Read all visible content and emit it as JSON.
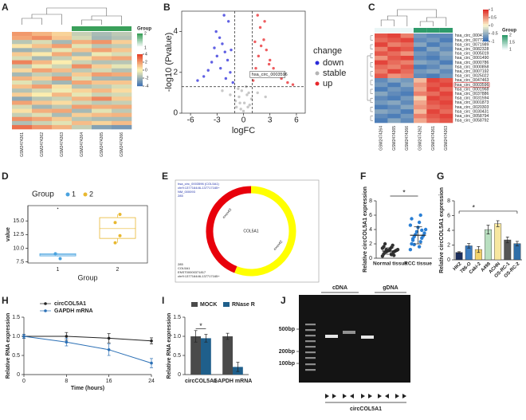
{
  "chart_data": [
    {
      "type": "heatmap",
      "panel": "A",
      "columns": [
        "GSM2474261",
        "GSM2474262",
        "GSM2474263",
        "GSM2474264",
        "GSM2474265",
        "GSM2474266"
      ],
      "groups": [
        1,
        1,
        1,
        2,
        2,
        2
      ],
      "group_colors": [
        "#ffffff",
        "#3aa05a"
      ],
      "legend_title": "Group",
      "group_ticks": [
        2,
        1
      ],
      "colors": [
        "#4575b4",
        "#fdf6b5",
        "#e6452a"
      ],
      "clim": [
        -4,
        4
      ],
      "colorbar_ticks": [
        4,
        2,
        0,
        -2,
        -4
      ],
      "matrix": [
        [
          2.1,
          1.5,
          0.8,
          -1.2,
          -1.8,
          -1.4
        ],
        [
          1.8,
          2.4,
          1.1,
          -0.9,
          -2.0,
          -1.6
        ],
        [
          -1.5,
          -0.8,
          -1.9,
          1.6,
          2.2,
          0.9
        ],
        [
          0.4,
          1.2,
          2.0,
          -0.6,
          -1.5,
          -1.3
        ],
        [
          -2.1,
          -1.6,
          -0.5,
          1.2,
          1.9,
          1.1
        ],
        [
          1.0,
          0.3,
          1.7,
          -1.8,
          -0.4,
          -0.8
        ],
        [
          -0.8,
          -1.9,
          -1.2,
          0.6,
          1.5,
          1.8
        ],
        [
          2.6,
          1.4,
          0.2,
          -1.1,
          -1.6,
          -1.5
        ],
        [
          -1.3,
          -0.4,
          -1.0,
          2.3,
          0.9,
          -0.5
        ],
        [
          0.7,
          1.9,
          1.3,
          -1.4,
          -0.9,
          -1.6
        ],
        [
          -1.9,
          -1.2,
          -1.6,
          1.0,
          2.0,
          1.7
        ],
        [
          1.5,
          0.9,
          2.2,
          -0.7,
          -1.9,
          -2.0
        ],
        [
          -0.6,
          -1.4,
          -2.0,
          1.8,
          1.1,
          1.1
        ],
        [
          1.2,
          2.0,
          0.5,
          -1.6,
          -1.3,
          -0.8
        ],
        [
          -1.6,
          -0.9,
          -0.3,
          0.8,
          1.4,
          0.6
        ],
        [
          0.9,
          0.2,
          1.4,
          -0.5,
          -1.1,
          -0.9
        ],
        [
          -2.4,
          -1.5,
          -1.1,
          1.5,
          2.5,
          1.0
        ],
        [
          1.9,
          1.1,
          0.6,
          -1.0,
          -1.4,
          -1.2
        ],
        [
          -0.9,
          -2.0,
          -1.4,
          2.0,
          1.6,
          1.7
        ],
        [
          0.5,
          1.6,
          1.8,
          -1.9,
          -0.6,
          -1.4
        ],
        [
          -1.2,
          -0.7,
          -1.8,
          0.9,
          1.3,
          1.5
        ],
        [
          2.3,
          1.8,
          1.0,
          -1.5,
          -1.8,
          -1.8
        ],
        [
          -1.7,
          -1.1,
          -0.6,
          1.3,
          0.8,
          1.3
        ],
        [
          3.0,
          2.2,
          1.5,
          -1.2,
          -2.6,
          -2.9
        ]
      ]
    },
    {
      "type": "volcano",
      "panel": "B",
      "xlabel": "logFC",
      "ylabel": "-log10 (Pvalue)",
      "xlim": [
        -7,
        7
      ],
      "xticks": [
        -6,
        -3,
        0,
        3,
        6
      ],
      "ylim": [
        0,
        5
      ],
      "yticks": [
        0,
        2,
        4
      ],
      "thresholds": {
        "x": [
          -1,
          1
        ],
        "y": 1.3
      },
      "legend_title": "change",
      "annotation": {
        "text": "hsa_circ_0003596",
        "x": 1.2,
        "y": 1.9
      },
      "series": [
        {
          "name": "down",
          "color": "#2b2bd9",
          "x": [
            -1.2,
            -1.5,
            -1.8,
            -2.1,
            -2.4,
            -2.7,
            -3.0,
            -3.3,
            -3.6,
            -4.0,
            -4.5,
            -1.4,
            -2.0,
            -2.6,
            -3.1,
            -1.7,
            -5.2,
            -2.2
          ],
          "values": [
            1.5,
            2.0,
            2.6,
            3.0,
            3.4,
            3.7,
            2.8,
            3.2,
            2.5,
            2.1,
            1.8,
            3.1,
            1.7,
            2.2,
            4.0,
            4.5,
            1.6,
            4.8
          ]
        },
        {
          "name": "stable",
          "color": "#b5b5b5",
          "x": [
            -0.8,
            -0.5,
            -0.2,
            0.1,
            0.4,
            0.7,
            -0.6,
            0.3,
            -0.3,
            0.6,
            -0.9,
            0.9,
            0.0,
            -0.4,
            0.5,
            -1.5,
            1.6,
            -2.4,
            2.5
          ],
          "values": [
            0.3,
            0.8,
            1.1,
            0.5,
            0.9,
            0.4,
            1.2,
            1.3,
            0.2,
            1.0,
            0.6,
            0.7,
            0.1,
            0.5,
            0.3,
            0.9,
            1.0,
            1.1,
            0.8
          ]
        },
        {
          "name": "up",
          "color": "#e8262a",
          "x": [
            1.1,
            1.4,
            1.7,
            2.0,
            2.3,
            2.6,
            3.0,
            3.4,
            3.8,
            4.3,
            5.0,
            1.3,
            1.9,
            2.4,
            2.9,
            1.6,
            5.6,
            2.1
          ],
          "values": [
            1.6,
            2.2,
            2.8,
            3.3,
            3.6,
            3.1,
            2.6,
            2.2,
            1.9,
            1.7,
            1.5,
            3.5,
            4.2,
            4.5,
            2.4,
            4.8,
            1.4,
            1.9
          ]
        }
      ]
    },
    {
      "type": "heatmap",
      "panel": "C",
      "columns": [
        "GSM2474264",
        "GSM2474265",
        "GSM2474266",
        "GSM2474262",
        "GSM2474261",
        "GSM2474263"
      ],
      "rows": [
        "hsa_circ_0004121",
        "hsa_circ_0077216",
        "hsa_circ_0071989",
        "hsa_circ_0082328",
        "hsa_circ_0005019",
        "hsa_circ_0001490",
        "hsa_circ_0000786",
        "hsa_circ_0000858",
        "hsa_circ_0007192",
        "hsa_circ_0025022",
        "hsa_circ_0047463",
        "hsa_circ_0003596",
        "hsa_circ_0001968",
        "hsa_circ_0037886",
        "hsa_circ_0031594",
        "hsa_circ_0001873",
        "hsa_circ_0020303",
        "hsa_circ_0030431",
        "hsa_circ_0058794",
        "hsa_circ_0058792"
      ],
      "highlight_row": 11,
      "groups": [
        1,
        1,
        1,
        2,
        2,
        2
      ],
      "group_colors": [
        "#eaf6f6",
        "#2e9a6a"
      ],
      "legend_title": "Group",
      "group_ticks": [
        2,
        1.5,
        1
      ],
      "colors": [
        "#3a70b5",
        "#fbf7cf",
        "#e0302a"
      ],
      "clim": [
        -1,
        1
      ],
      "colorbar_ticks": [
        1,
        0.5,
        0,
        -0.5,
        -1
      ],
      "matrix": [
        [
          0.8,
          0.9,
          0.6,
          -0.7,
          -0.8,
          -0.8
        ],
        [
          0.7,
          0.8,
          0.9,
          -0.8,
          -0.7,
          -0.9
        ],
        [
          0.9,
          0.6,
          0.7,
          -0.6,
          -0.9,
          -0.7
        ],
        [
          0.6,
          0.9,
          0.8,
          -0.9,
          -0.6,
          -0.8
        ],
        [
          0.8,
          0.7,
          0.5,
          -0.7,
          -0.8,
          -0.6
        ],
        [
          0.5,
          0.8,
          0.9,
          -0.8,
          -0.9,
          -0.7
        ],
        [
          0.9,
          0.7,
          0.6,
          -0.6,
          -0.7,
          -0.9
        ],
        [
          0.7,
          0.6,
          0.8,
          -0.9,
          -0.8,
          -0.6
        ],
        [
          0.6,
          0.9,
          0.7,
          -0.7,
          -0.6,
          -0.8
        ],
        [
          0.8,
          0.5,
          0.6,
          -0.8,
          -0.9,
          -0.7
        ],
        [
          -0.8,
          -0.6,
          -0.7,
          0.3,
          0.9,
          0.8
        ],
        [
          -0.7,
          -0.9,
          -0.6,
          0.5,
          0.8,
          0.9
        ],
        [
          -0.9,
          -0.7,
          -0.8,
          0.4,
          0.9,
          0.7
        ],
        [
          -0.6,
          -0.8,
          -0.9,
          0.6,
          0.7,
          0.9
        ],
        [
          -0.8,
          -0.9,
          -0.7,
          0.2,
          0.9,
          0.8
        ],
        [
          -0.7,
          -0.6,
          -0.8,
          0.4,
          0.8,
          0.9
        ],
        [
          -0.9,
          -0.8,
          -0.6,
          0.5,
          0.7,
          0.8
        ],
        [
          -0.6,
          -0.7,
          -0.9,
          0.3,
          0.9,
          0.7
        ],
        [
          -0.8,
          -0.9,
          -0.7,
          0.6,
          0.8,
          0.9
        ],
        [
          -0.9,
          -0.6,
          -0.8,
          0.4,
          0.7,
          0.8
        ]
      ]
    },
    {
      "type": "box",
      "panel": "D",
      "xlabel": "Group",
      "ylabel": "value",
      "legend_title": "Group",
      "categories": [
        "1",
        "2"
      ],
      "ylim": [
        7.3,
        17.8
      ],
      "yticks": [
        7.5,
        {
          "value": 10,
          "label": "10.0"
        },
        12.5,
        {
          "value": 15,
          "label": "15.0"
        }
      ],
      "boxes": [
        {
          "name": "1",
          "color": "#4aa3df",
          "min": 8.5,
          "q1": 8.6,
          "median": 8.8,
          "q3": 9.0,
          "max": 9.1,
          "points": [
            8.1,
            9.0
          ],
          "outliers": [
            17.3
          ]
        },
        {
          "name": "2",
          "color": "#e8b830",
          "min": 11.0,
          "q1": 11.8,
          "median": 13.6,
          "q3": 15.6,
          "max": 16.2,
          "points": [
            16.2,
            14.7,
            12.3,
            11.0
          ],
          "outliers": []
        }
      ]
    },
    {
      "type": "diagram",
      "panel": "E",
      "colors": [
        "#e8000b",
        "#ffff00"
      ],
      "header": [
        "hsa_circ_0003596 (COL5A1)",
        "chr9:137716446-137717165+",
        "NM_000093",
        "285"
      ],
      "center": "COL5A1",
      "exons": [
        "exon43",
        "exon42"
      ],
      "footer": [
        "285",
        "COL5A1",
        "ENST00000371817",
        "chr9:137716446-137717165+"
      ]
    },
    {
      "type": "bar_scatter",
      "panel": "F",
      "ylabel": "Relative circCOL5A1 expression",
      "significance": "*",
      "categories": [
        "Normal tissue",
        "RCC tissue"
      ],
      "colors": [
        "#333333",
        "#2a7fd4"
      ],
      "values": [
        1.0,
        3.2
      ],
      "errors": [
        0.45,
        1.2
      ],
      "ylim": [
        0,
        8
      ],
      "yticks": [
        0,
        2,
        4,
        6,
        8
      ],
      "points": [
        [
          0.3,
          0.5,
          0.6,
          0.7,
          0.8,
          0.9,
          0.9,
          1.0,
          1.0,
          1.1,
          1.1,
          1.2,
          1.3,
          1.4,
          1.5,
          1.6,
          1.8,
          2.0,
          0.4,
          1.2
        ],
        [
          1.2,
          1.6,
          2.0,
          2.3,
          2.5,
          2.8,
          3.0,
          3.1,
          3.3,
          3.5,
          3.7,
          4.0,
          4.3,
          4.6,
          5.0,
          5.5,
          6.0,
          2.7,
          3.9,
          1.9
        ]
      ]
    },
    {
      "type": "bar",
      "panel": "G",
      "ylabel": "Relative circCOL5A1 expression",
      "significance": "*",
      "categories": [
        "HK2",
        "786-O",
        "Caki-2",
        "A498",
        "ACHN",
        "OS-RC-1",
        "OS-RC-2"
      ],
      "values": [
        1.0,
        1.9,
        1.4,
        4.1,
        4.9,
        2.7,
        2.2
      ],
      "errors": [
        0.1,
        0.3,
        0.4,
        0.6,
        0.4,
        0.4,
        0.3
      ],
      "colors": [
        "#1d2f5c",
        "#3a7bbf",
        "#f3d36b",
        "#b9dfc0",
        "#f7e7a0",
        "#555555",
        "#2f6ea8"
      ],
      "ylim": [
        0,
        8
      ],
      "yticks": [
        0,
        2,
        4,
        6,
        8
      ]
    },
    {
      "type": "line",
      "panel": "H",
      "xlabel": "Time (hours)",
      "ylabel": "Relative RNA expression",
      "x": [
        0,
        8,
        16,
        24
      ],
      "xlim": [
        0,
        24
      ],
      "xticks": [
        0,
        8,
        16,
        24
      ],
      "ylim": [
        0,
        1.5
      ],
      "yticks": [
        0,
        0.5,
        {
          "value": 1,
          "label": "1.0"
        },
        1.5
      ],
      "series": [
        {
          "name": "circCOL5A1",
          "color": "#222222",
          "values": [
            1.0,
            1.0,
            0.95,
            0.88
          ],
          "errors": [
            0.05,
            0.1,
            0.12,
            0.08
          ]
        },
        {
          "name": "GAPDH mRNA",
          "color": "#2a6fb5",
          "values": [
            1.0,
            0.85,
            0.65,
            0.3
          ],
          "errors": [
            0.05,
            0.1,
            0.15,
            0.12
          ]
        }
      ]
    },
    {
      "type": "grouped_bar",
      "panel": "I",
      "ylabel": "Relative RNA expression",
      "significance": "*",
      "categories": [
        "circCOL5A1",
        "GAPDH mRNA"
      ],
      "ylim": [
        0,
        1.5
      ],
      "yticks": [
        0,
        0.5,
        {
          "value": 1,
          "label": "1.0"
        },
        1.5
      ],
      "series": [
        {
          "name": "MOCK",
          "color": "#4a4a4a",
          "values": [
            1.0,
            1.0
          ],
          "errors": [
            0.15,
            0.08
          ]
        },
        {
          "name": "RNase R",
          "color": "#1f5f8b",
          "values": [
            0.95,
            0.2
          ],
          "errors": [
            0.1,
            0.12
          ]
        }
      ]
    },
    {
      "type": "gel",
      "panel": "J",
      "lanes_top": [
        "cDNA",
        "gDNA"
      ],
      "markers": [
        "500bp",
        "200bp",
        "100bp"
      ],
      "target": "circCOL5A1"
    }
  ]
}
